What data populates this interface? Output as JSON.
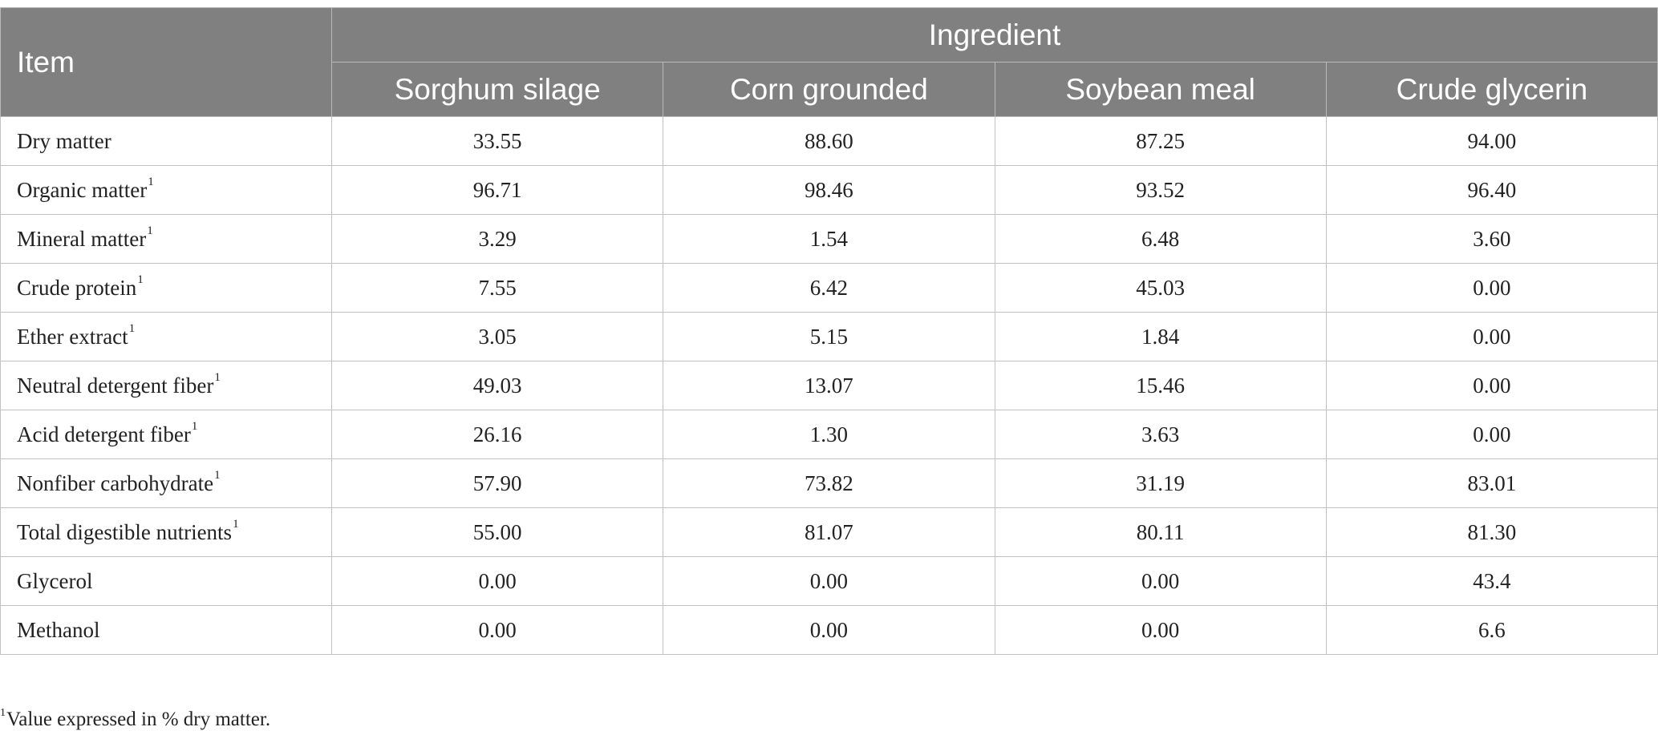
{
  "table": {
    "item_header": "Item",
    "group_header": "Ingredient",
    "columns": [
      "Sorghum silage",
      "Corn grounded",
      "Soybean meal",
      "Crude glycerin"
    ],
    "rows": [
      {
        "label": "Dry matter",
        "sup": "",
        "values": [
          "33.55",
          "88.60",
          "87.25",
          "94.00"
        ]
      },
      {
        "label": "Organic matter",
        "sup": "1",
        "values": [
          "96.71",
          "98.46",
          "93.52",
          "96.40"
        ]
      },
      {
        "label": "Mineral matter",
        "sup": "1",
        "values": [
          "3.29",
          "1.54",
          "6.48",
          "3.60"
        ]
      },
      {
        "label": "Crude protein",
        "sup": "1",
        "values": [
          "7.55",
          "6.42",
          "45.03",
          "0.00"
        ]
      },
      {
        "label": "Ether extract",
        "sup": "1",
        "values": [
          "3.05",
          "5.15",
          "1.84",
          "0.00"
        ]
      },
      {
        "label": "Neutral detergent fiber",
        "sup": "1",
        "values": [
          "49.03",
          "13.07",
          "15.46",
          "0.00"
        ]
      },
      {
        "label": "Acid detergent fiber",
        "sup": "1",
        "values": [
          "26.16",
          "1.30",
          "3.63",
          "0.00"
        ]
      },
      {
        "label": "Nonfiber carbohydrate",
        "sup": "1",
        "values": [
          "57.90",
          "73.82",
          "31.19",
          "83.01"
        ]
      },
      {
        "label": "Total digestible nutrients",
        "sup": "1",
        "values": [
          "55.00",
          "81.07",
          "80.11",
          "81.30"
        ]
      },
      {
        "label": "Glycerol",
        "sup": "",
        "values": [
          "0.00",
          "0.00",
          "0.00",
          "43.4"
        ]
      },
      {
        "label": "Methanol",
        "sup": "",
        "values": [
          "0.00",
          "0.00",
          "0.00",
          "6.6"
        ]
      }
    ]
  },
  "footnote": {
    "marker": "1",
    "text": "Value expressed in % dry matter."
  }
}
